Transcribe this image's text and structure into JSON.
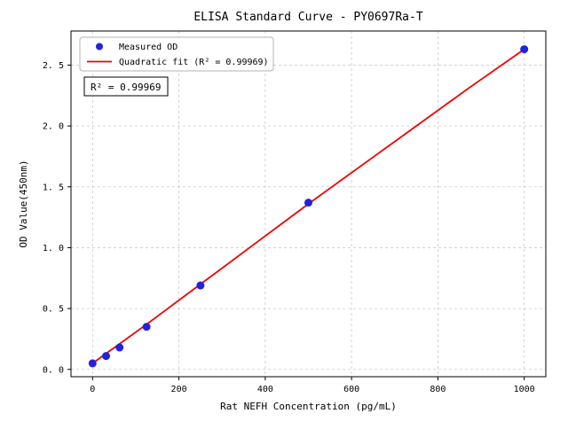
{
  "chart_data": {
    "type": "scatter",
    "title": "ELISA Standard Curve - PY0697Ra-T",
    "xlabel": "Rat NEFH Concentration (pg/mL)",
    "ylabel": "OD Value(450nm)",
    "xlim": [
      -50,
      1050
    ],
    "ylim": [
      -0.06,
      2.78
    ],
    "grid": true,
    "xticks": {
      "values": [
        0,
        200,
        400,
        600,
        800,
        1000
      ],
      "labels": [
        "0",
        "200",
        "400",
        "600",
        "800",
        "1000"
      ]
    },
    "yticks": {
      "values": [
        0.0,
        0.5,
        1.0,
        1.5,
        2.0,
        2.5
      ],
      "labels": [
        "0. 0",
        "0. 5",
        "1. 0",
        "1. 5",
        "2. 0",
        "2. 5"
      ]
    },
    "series": [
      {
        "name": "Measured OD",
        "type": "scatter",
        "color": "#2222dd",
        "x": [
          0,
          31.25,
          62.5,
          125,
          250,
          500,
          1000
        ],
        "y": [
          0.05,
          0.11,
          0.18,
          0.35,
          0.69,
          1.37,
          2.63
        ]
      },
      {
        "name": "Quadratic fit",
        "type": "line",
        "color": "#ee0000",
        "x": [
          0,
          125,
          250,
          375,
          500,
          625,
          750,
          875,
          1000
        ],
        "y": [
          0.05,
          0.37,
          0.7,
          1.03,
          1.36,
          1.68,
          2.0,
          2.32,
          2.63
        ]
      }
    ],
    "legend": {
      "position": "upper left",
      "entries": [
        {
          "label": "Measured OD",
          "marker": "point",
          "color": "#2222dd"
        },
        {
          "label": "Quadratic fit (R² = 0.99969)",
          "marker": "line",
          "color": "#ee0000"
        }
      ]
    },
    "annotation": {
      "text": "R² = 0.99969"
    },
    "colors": {
      "background": "#ffffff",
      "axis": "#000000",
      "grid": "#c9c9c9",
      "legend_border": "#b3b3b3",
      "annotation_border": "#000000"
    }
  }
}
